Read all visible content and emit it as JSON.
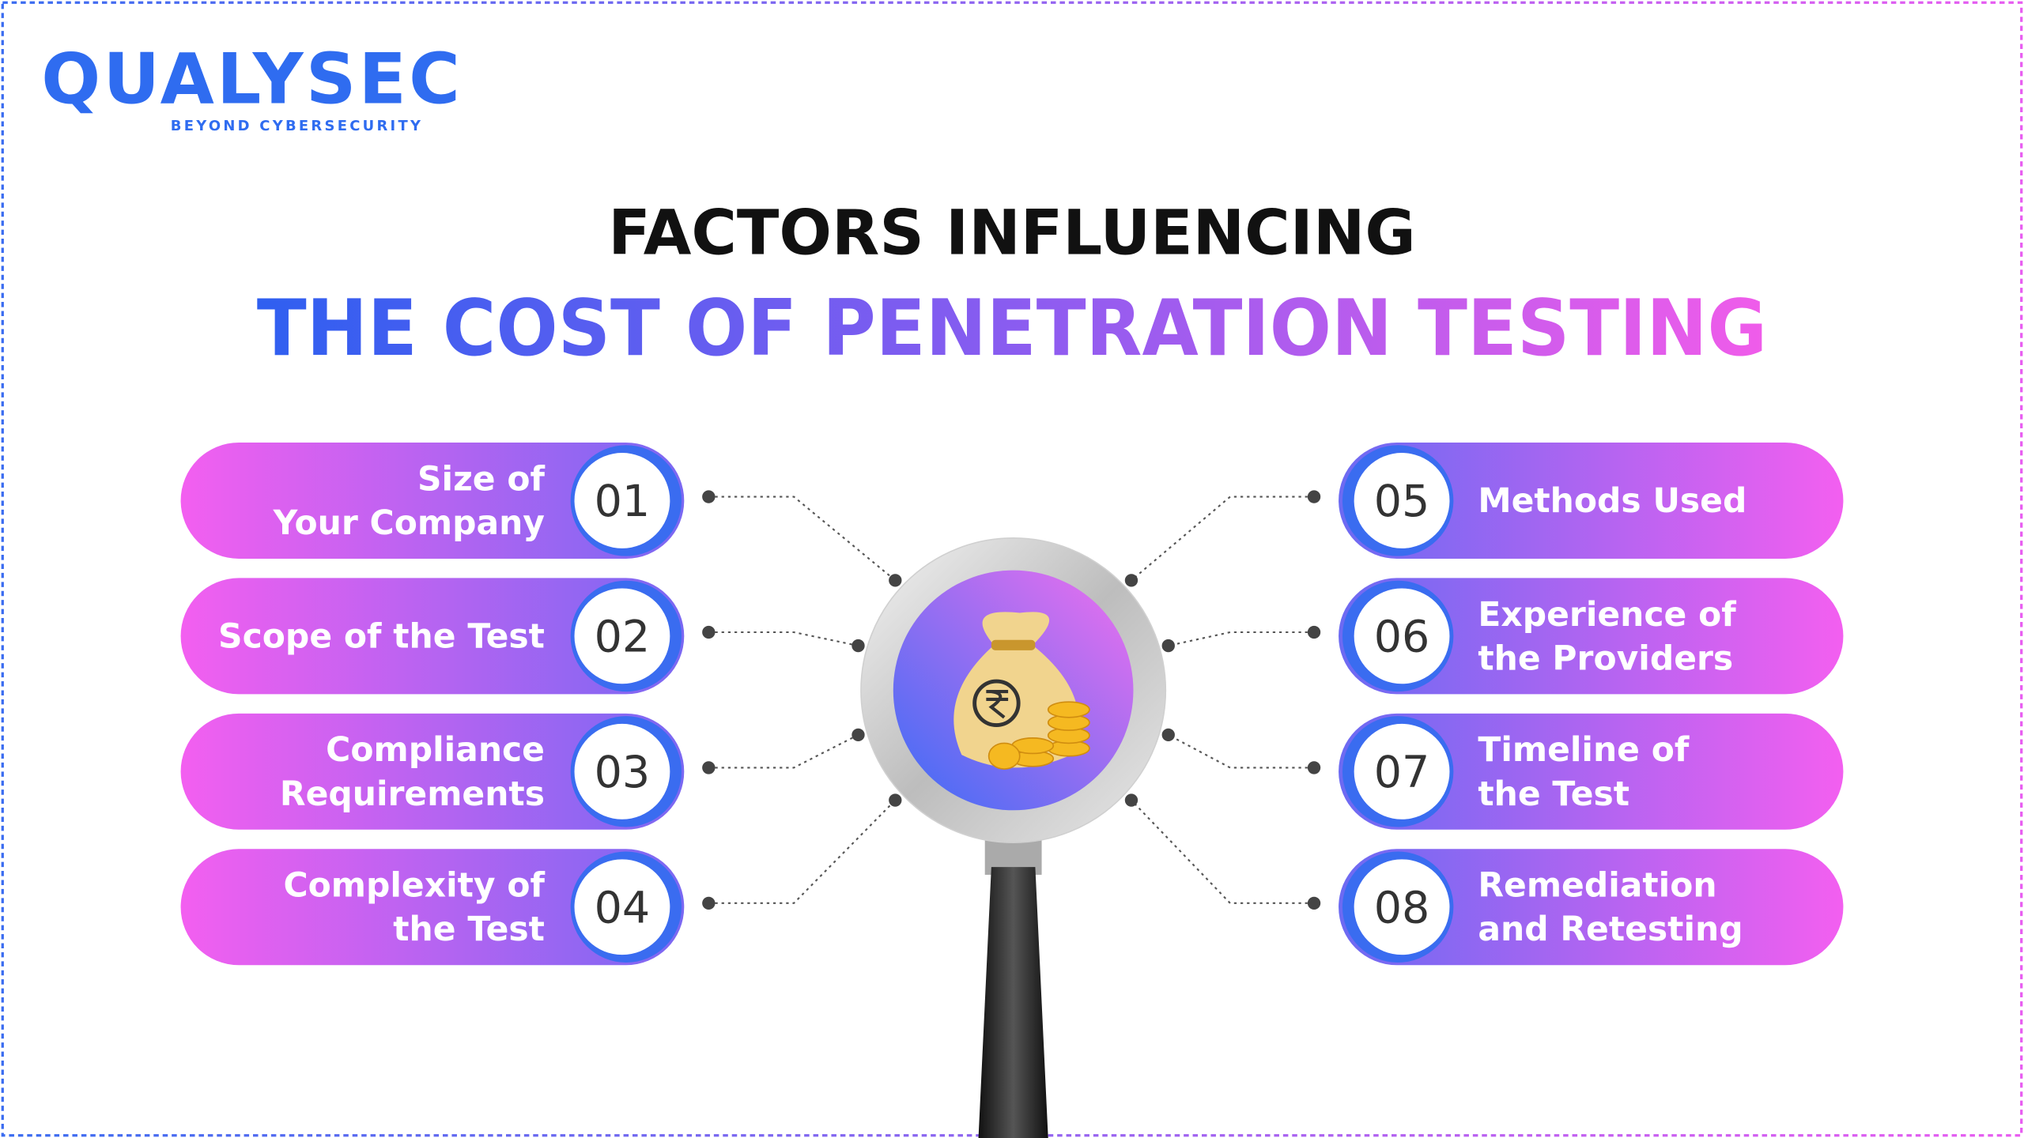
{
  "logo": {
    "name": "QUALYSEC",
    "tagline": "BEYOND CYBERSECURITY"
  },
  "title": {
    "line1": "FACTORS INFLUENCING",
    "line2": "THE COST OF PENETRATION TESTING"
  },
  "factors": [
    {
      "number": "01",
      "lines": [
        "Size of",
        "Your Company"
      ]
    },
    {
      "number": "02",
      "lines": [
        "Scope of the Test"
      ]
    },
    {
      "number": "03",
      "lines": [
        "Compliance",
        "Requirements"
      ]
    },
    {
      "number": "04",
      "lines": [
        "Complexity of",
        "the Test"
      ]
    },
    {
      "number": "05",
      "lines": [
        "Methods Used"
      ]
    },
    {
      "number": "06",
      "lines": [
        "Experience of",
        "the Providers"
      ]
    },
    {
      "number": "07",
      "lines": [
        "Timeline of",
        "the Test"
      ]
    },
    {
      "number": "08",
      "lines": [
        "Remediation",
        "and Retesting"
      ]
    }
  ]
}
